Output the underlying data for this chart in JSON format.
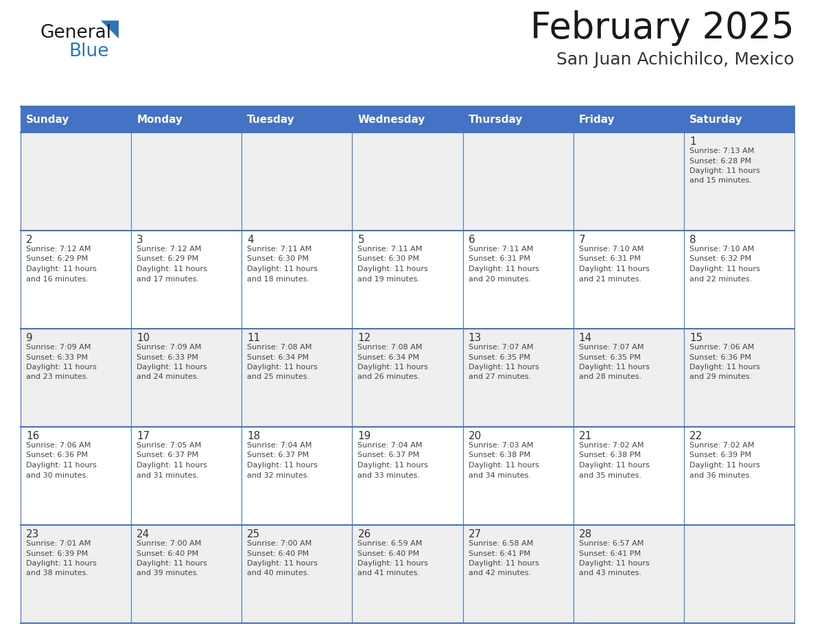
{
  "title": "February 2025",
  "subtitle": "San Juan Achichilco, Mexico",
  "header_bg": "#4472C4",
  "header_text_color": "#FFFFFF",
  "cell_bg_light": "#EFEFEF",
  "cell_bg_white": "#FFFFFF",
  "grid_line_color": "#4472C4",
  "day_headers": [
    "Sunday",
    "Monday",
    "Tuesday",
    "Wednesday",
    "Thursday",
    "Friday",
    "Saturday"
  ],
  "title_color": "#1a1a1a",
  "subtitle_color": "#333333",
  "day_num_color": "#333333",
  "cell_text_color": "#444444",
  "logo_general_color": "#1a1a1a",
  "logo_blue_color": "#2E75B6",
  "weeks": [
    [
      null,
      null,
      null,
      null,
      null,
      null,
      1
    ],
    [
      2,
      3,
      4,
      5,
      6,
      7,
      8
    ],
    [
      9,
      10,
      11,
      12,
      13,
      14,
      15
    ],
    [
      16,
      17,
      18,
      19,
      20,
      21,
      22
    ],
    [
      23,
      24,
      25,
      26,
      27,
      28,
      null
    ]
  ],
  "day_data": {
    "1": {
      "sunrise": "7:13 AM",
      "sunset": "6:28 PM",
      "daylight_hours": 11,
      "daylight_minutes": 15
    },
    "2": {
      "sunrise": "7:12 AM",
      "sunset": "6:29 PM",
      "daylight_hours": 11,
      "daylight_minutes": 16
    },
    "3": {
      "sunrise": "7:12 AM",
      "sunset": "6:29 PM",
      "daylight_hours": 11,
      "daylight_minutes": 17
    },
    "4": {
      "sunrise": "7:11 AM",
      "sunset": "6:30 PM",
      "daylight_hours": 11,
      "daylight_minutes": 18
    },
    "5": {
      "sunrise": "7:11 AM",
      "sunset": "6:30 PM",
      "daylight_hours": 11,
      "daylight_minutes": 19
    },
    "6": {
      "sunrise": "7:11 AM",
      "sunset": "6:31 PM",
      "daylight_hours": 11,
      "daylight_minutes": 20
    },
    "7": {
      "sunrise": "7:10 AM",
      "sunset": "6:31 PM",
      "daylight_hours": 11,
      "daylight_minutes": 21
    },
    "8": {
      "sunrise": "7:10 AM",
      "sunset": "6:32 PM",
      "daylight_hours": 11,
      "daylight_minutes": 22
    },
    "9": {
      "sunrise": "7:09 AM",
      "sunset": "6:33 PM",
      "daylight_hours": 11,
      "daylight_minutes": 23
    },
    "10": {
      "sunrise": "7:09 AM",
      "sunset": "6:33 PM",
      "daylight_hours": 11,
      "daylight_minutes": 24
    },
    "11": {
      "sunrise": "7:08 AM",
      "sunset": "6:34 PM",
      "daylight_hours": 11,
      "daylight_minutes": 25
    },
    "12": {
      "sunrise": "7:08 AM",
      "sunset": "6:34 PM",
      "daylight_hours": 11,
      "daylight_minutes": 26
    },
    "13": {
      "sunrise": "7:07 AM",
      "sunset": "6:35 PM",
      "daylight_hours": 11,
      "daylight_minutes": 27
    },
    "14": {
      "sunrise": "7:07 AM",
      "sunset": "6:35 PM",
      "daylight_hours": 11,
      "daylight_minutes": 28
    },
    "15": {
      "sunrise": "7:06 AM",
      "sunset": "6:36 PM",
      "daylight_hours": 11,
      "daylight_minutes": 29
    },
    "16": {
      "sunrise": "7:06 AM",
      "sunset": "6:36 PM",
      "daylight_hours": 11,
      "daylight_minutes": 30
    },
    "17": {
      "sunrise": "7:05 AM",
      "sunset": "6:37 PM",
      "daylight_hours": 11,
      "daylight_minutes": 31
    },
    "18": {
      "sunrise": "7:04 AM",
      "sunset": "6:37 PM",
      "daylight_hours": 11,
      "daylight_minutes": 32
    },
    "19": {
      "sunrise": "7:04 AM",
      "sunset": "6:37 PM",
      "daylight_hours": 11,
      "daylight_minutes": 33
    },
    "20": {
      "sunrise": "7:03 AM",
      "sunset": "6:38 PM",
      "daylight_hours": 11,
      "daylight_minutes": 34
    },
    "21": {
      "sunrise": "7:02 AM",
      "sunset": "6:38 PM",
      "daylight_hours": 11,
      "daylight_minutes": 35
    },
    "22": {
      "sunrise": "7:02 AM",
      "sunset": "6:39 PM",
      "daylight_hours": 11,
      "daylight_minutes": 36
    },
    "23": {
      "sunrise": "7:01 AM",
      "sunset": "6:39 PM",
      "daylight_hours": 11,
      "daylight_minutes": 38
    },
    "24": {
      "sunrise": "7:00 AM",
      "sunset": "6:40 PM",
      "daylight_hours": 11,
      "daylight_minutes": 39
    },
    "25": {
      "sunrise": "7:00 AM",
      "sunset": "6:40 PM",
      "daylight_hours": 11,
      "daylight_minutes": 40
    },
    "26": {
      "sunrise": "6:59 AM",
      "sunset": "6:40 PM",
      "daylight_hours": 11,
      "daylight_minutes": 41
    },
    "27": {
      "sunrise": "6:58 AM",
      "sunset": "6:41 PM",
      "daylight_hours": 11,
      "daylight_minutes": 42
    },
    "28": {
      "sunrise": "6:57 AM",
      "sunset": "6:41 PM",
      "daylight_hours": 11,
      "daylight_minutes": 43
    }
  }
}
